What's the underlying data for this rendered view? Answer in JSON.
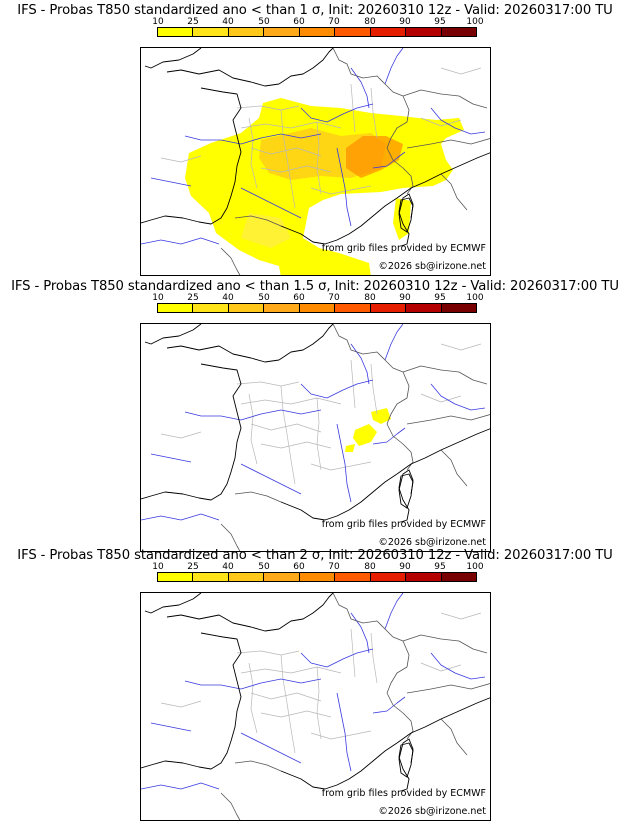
{
  "colorbar": {
    "ticks": [
      "10",
      "25",
      "40",
      "50",
      "60",
      "70",
      "80",
      "90",
      "95",
      "100"
    ],
    "colors": [
      "#ffff00",
      "#ffe41a",
      "#ffc81a",
      "#ffaa1a",
      "#ff8c00",
      "#ff5a00",
      "#e61e00",
      "#b40000",
      "#780000"
    ]
  },
  "panels": [
    {
      "title": "IFS - Probas T850  standardized ano < than 1 σ, Init: 20260310 12z - Valid: 20260317:00 TU",
      "credit_source": "from grib files provided by ECMWF",
      "credit_copy": "©2026 sb@irizone.net",
      "probability_fill": "large"
    },
    {
      "title": "IFS - Probas T850  standardized ano < than 1.5 σ, Init: 20260310 12z - Valid: 20260317:00 TU",
      "credit_source": "from grib files provided by ECMWF",
      "credit_copy": "©2026 sb@irizone.net",
      "probability_fill": "small"
    },
    {
      "title": "IFS - Probas T850  standardized ano < than 2 σ, Init: 20260310 12z - Valid: 20260317:00 TU",
      "credit_source": "from grib files provided by ECMWF",
      "credit_copy": "©2026 sb@irizone.net",
      "probability_fill": "none"
    }
  ]
}
